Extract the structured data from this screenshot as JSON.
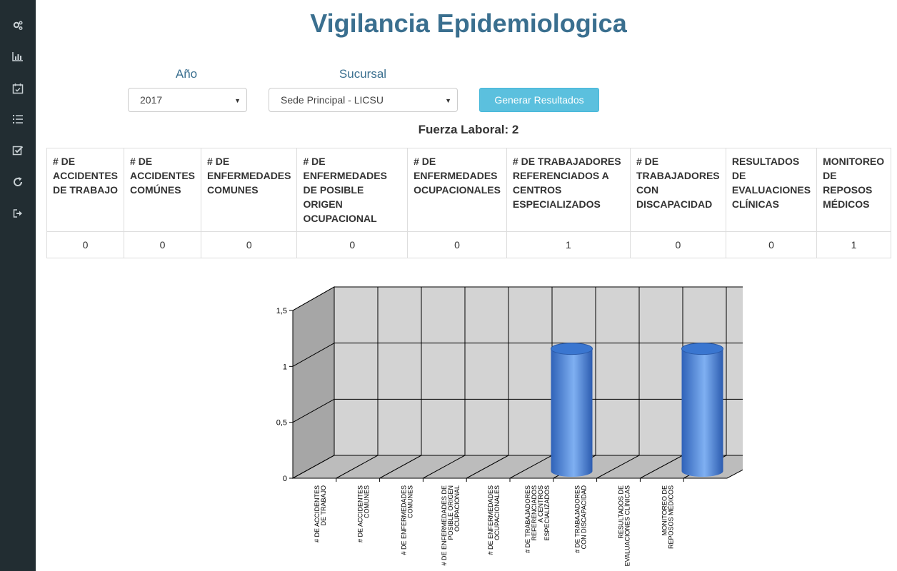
{
  "sidebar": {
    "icons": [
      "gears-icon",
      "bar-chart-icon",
      "calendar-check-icon",
      "list-icon",
      "checkbox-icon",
      "refresh-icon",
      "sign-out-icon"
    ]
  },
  "header": {
    "title": "Vigilancia Epidemiologica"
  },
  "filters": {
    "year_label": "Año",
    "year_value": "2017",
    "branch_label": "Sucursal",
    "branch_value": "Sede Principal - LICSU",
    "submit_label": "Generar Resultados"
  },
  "summary": {
    "fuerza_laboral": "Fuerza Laboral: 2"
  },
  "table": {
    "headers": [
      "# DE ACCIDENTES DE TRABAJO",
      "# DE ACCIDENTES COMÚNES",
      "# DE ENFERMEDADES COMUNES",
      "# DE ENFERMEDADES DE POSIBLE ORIGEN OCUPACIONAL",
      "# DE ENFERMEDADES OCUPACIONALES",
      "# DE TRABAJADORES REFERENCIADOS A CENTROS ESPECIALIZADOS",
      "# DE TRABAJADORES CON DISCAPACIDAD",
      "RESULTADOS DE EVALUACIONES CLÍNICAS",
      "MONITOREO DE REPOSOS MÉDICOS"
    ],
    "values": [
      "0",
      "0",
      "0",
      "0",
      "0",
      "1",
      "0",
      "0",
      "1"
    ]
  },
  "chart_data": {
    "type": "bar",
    "categories": [
      "# DE ACCIDENTES DE TRABAJO",
      "# DE ACCIDENTES COMUNES",
      "# DE ENFERMEDADES COMUNES",
      "# DE ENFERMEDADES DE POSIBLE ORIGEN OCUPACIONAL",
      "# DE ENFERMEDADES OCUPACIONALES",
      "# DE TRABAJADORES REFERENCIADOS A CENTROS ESPECIALIZADOS",
      "# DE TRABAJADORES CON DISCAPACIDAD",
      "RESULTADOS DE EVALUACIONES CLÍNICAS",
      "MONITOREO DE REPOSOS MÉDICOS"
    ],
    "category_lines": [
      [
        "# DE ACCIDENTES",
        "DE TRABAJO"
      ],
      [
        "# DE ACCIDENTES",
        "COMUNES"
      ],
      [
        "# DE ENFERMEDADES",
        "COMUNES"
      ],
      [
        "# DE ENFERMEDADES DE",
        "POSIBLE ORIGEN",
        "OCUPACIONAL"
      ],
      [
        "# DE ENFERMEDADES",
        "OCUPACIONALES"
      ],
      [
        "# DE TRABAJADORES",
        "REFERENCIADOS",
        "A CENTROS",
        "ESPECIALIZADOS"
      ],
      [
        "# DE TRABAJADORES",
        "CON DISCAPACIDAD"
      ],
      [
        "RESULTADOS DE",
        "EVALUACIONES CLÍNICAS"
      ],
      [
        "MONITOREO DE",
        "REPOSOS MÉDICOS"
      ]
    ],
    "values": [
      0,
      0,
      0,
      0,
      0,
      1,
      0,
      0,
      1
    ],
    "yticks": [
      "0",
      "0,5",
      "1",
      "1,5"
    ],
    "ylim": [
      0,
      1.5
    ],
    "style": "3d-cylinder",
    "bar_color": "#3f7fd6",
    "grid": true
  }
}
